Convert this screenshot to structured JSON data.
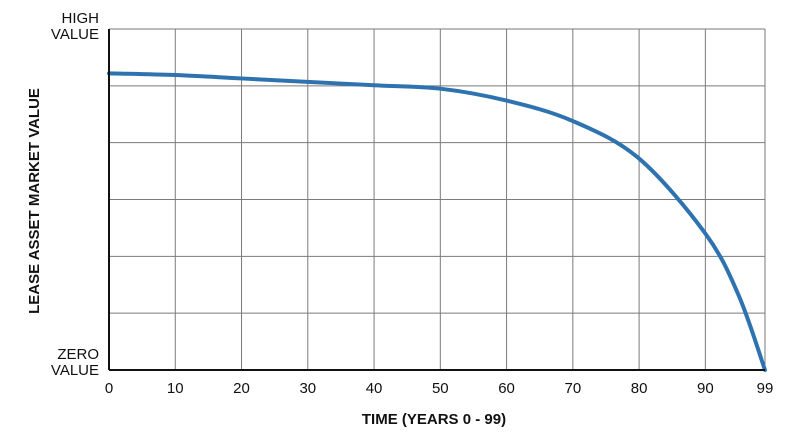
{
  "chart_data": {
    "type": "line",
    "title": "",
    "xlabel": "TIME (YEARS 0 - 99)",
    "ylabel": "LEASE ASSET MARKET VALUE",
    "x_ticks": [
      "0",
      "10",
      "20",
      "30",
      "40",
      "50",
      "60",
      "70",
      "80",
      "90",
      "99"
    ],
    "xlim": [
      0,
      99
    ],
    "ylim": [
      0,
      100
    ],
    "y_levels": [
      {
        "value": 100,
        "lines": [
          "HIGH",
          "VALUE"
        ]
      },
      {
        "value": 0,
        "lines": [
          "ZERO",
          "VALUE"
        ]
      }
    ],
    "grid": true,
    "legend": "none",
    "series": [
      {
        "color": "#2e73b0",
        "x": [
          0,
          10,
          20,
          30,
          40,
          50,
          60,
          70,
          80,
          90,
          95,
          99
        ],
        "y": [
          87,
          86.5,
          85.5,
          84.5,
          83.5,
          82.5,
          79,
          73,
          62,
          40,
          22,
          0
        ]
      }
    ]
  }
}
